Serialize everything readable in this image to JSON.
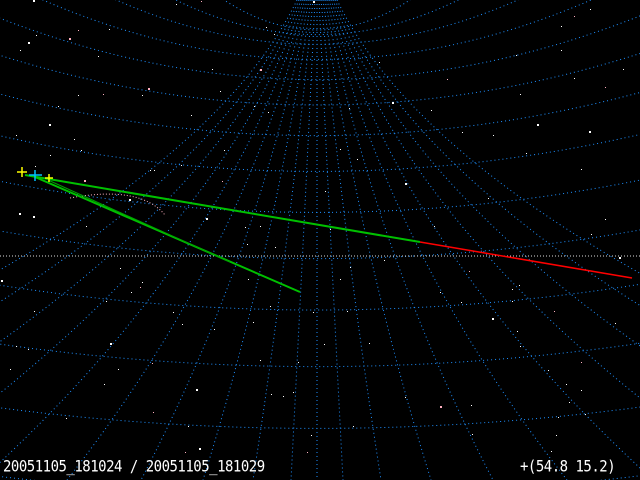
{
  "view": {
    "timestamp_label": "20051105_181024 / 20051105_181029",
    "pointer_coords": "+(54.8 15.2)"
  },
  "colors": {
    "background": "#000000",
    "grid": "#1e90ff",
    "horizon": "#ffffff",
    "track": "#00c000",
    "track_extension": "#ff0000",
    "marker_primary": "#ffff00",
    "marker_secondary": "#00c0ff",
    "arc": "#ffb0c0"
  },
  "icons": [
    "crosshair-marker-icon"
  ]
}
